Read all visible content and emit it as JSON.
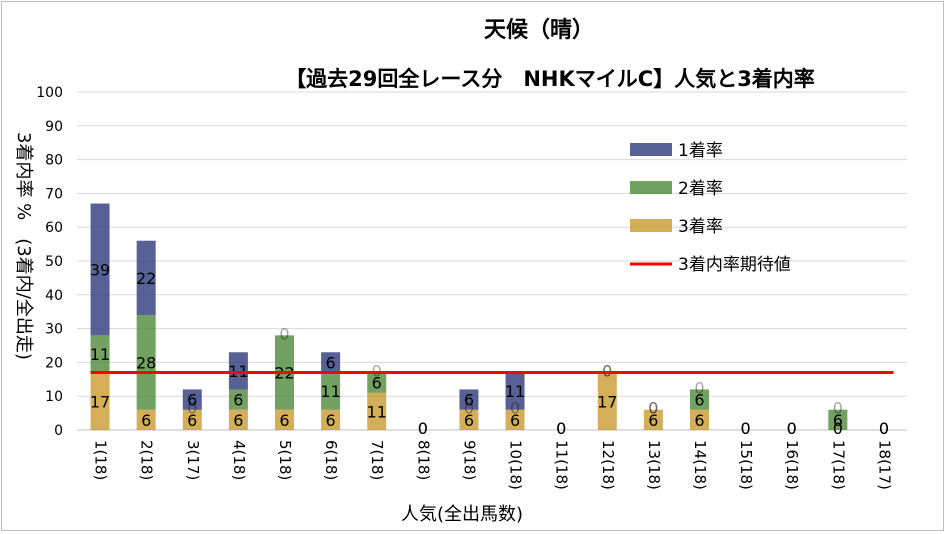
{
  "chart_data": {
    "type": "bar",
    "stacked": true,
    "title": "天候（晴）",
    "subtitle": "【過去29回全レース分　NHKマイルC】人気と3着内率",
    "xlabel": "人気(全出馬数)",
    "ylabel": "3着内率 %　(3着内/全出走)",
    "ylim": [
      0,
      100
    ],
    "yticks": [
      0,
      10,
      20,
      30,
      40,
      50,
      60,
      70,
      80,
      90,
      100
    ],
    "grid": true,
    "legend_position": "right",
    "categories": [
      "1(18)",
      "2(18)",
      "3(17)",
      "4(18)",
      "5(18)",
      "6(18)",
      "7(18)",
      "8(18)",
      "9(18)",
      "10(18)",
      "11(18)",
      "12(18)",
      "13(18)",
      "14(18)",
      "15(18)",
      "16(18)",
      "17(18)",
      "18(17)"
    ],
    "series": [
      {
        "name": "3着率",
        "color": "#c99a2e",
        "values": [
          17,
          6,
          6,
          6,
          6,
          6,
          11,
          0,
          6,
          6,
          0,
          17,
          6,
          6,
          0,
          0,
          0,
          0
        ]
      },
      {
        "name": "2着率",
        "color": "#4f8a3a",
        "values": [
          11,
          28,
          0,
          6,
          22,
          11,
          6,
          0,
          0,
          0,
          0,
          0,
          0,
          6,
          0,
          0,
          6,
          0
        ]
      },
      {
        "name": "1着率",
        "color": "#2e3a7a",
        "values": [
          39,
          22,
          6,
          11,
          0,
          6,
          0,
          0,
          6,
          11,
          0,
          0,
          0,
          0,
          0,
          0,
          0,
          0
        ]
      }
    ],
    "reference_line": {
      "name": "3着内率期待値",
      "value": 17,
      "color": "#ff0000"
    }
  }
}
